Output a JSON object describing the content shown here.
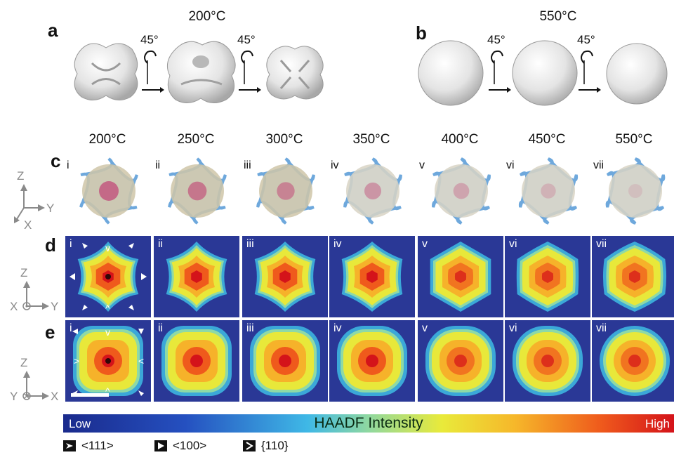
{
  "panel_a": {
    "label": "a",
    "temp": "200°C",
    "rot1": "45°",
    "rot2": "45°"
  },
  "panel_b": {
    "label": "b",
    "temp": "550°C",
    "rot1": "45°",
    "rot2": "45°"
  },
  "panel_c": {
    "label": "c",
    "temps": [
      "200°C",
      "250°C",
      "300°C",
      "350°C",
      "400°C",
      "450°C",
      "550°C"
    ]
  },
  "panel_d": {
    "label": "d"
  },
  "panel_e": {
    "label": "e"
  },
  "numerals": [
    "i",
    "ii",
    "iii",
    "iv",
    "v",
    "vi",
    "vii"
  ],
  "markers_d": {
    "top": "v",
    "bottom": "^"
  },
  "markers_e": {
    "top": "v",
    "bottom": "^",
    "left": ">",
    "right": "<"
  },
  "axes": {
    "c": {
      "z": "Z",
      "y": "Y",
      "x": "X"
    },
    "d": {
      "z": "Z",
      "y": "Y",
      "x": "X"
    },
    "e": {
      "z": "Z",
      "y": "Y",
      "x": "X"
    }
  },
  "colorbar": {
    "low": "Low",
    "title": "HAADF Intensity",
    "high": "High",
    "colors": [
      "#1a2a8c",
      "#2550c0",
      "#3fb8e6",
      "#e9ea3a",
      "#f6b72a",
      "#ef5a1c",
      "#d4131a"
    ]
  },
  "legend": [
    {
      "text": "<111>",
      "icon": "arrowhead-111-icon"
    },
    {
      "text": "<100>",
      "icon": "triangle-100-icon"
    },
    {
      "text": "{110}",
      "icon": "chevron-110-icon"
    }
  ]
}
